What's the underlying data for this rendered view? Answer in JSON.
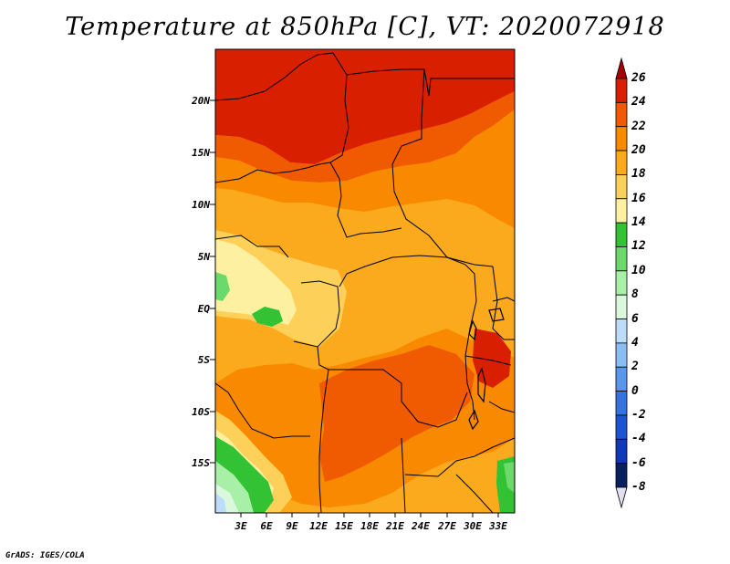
{
  "title": "Temperature at 850hPa [C], VT: 2020072918",
  "credit": "GrADS: IGES/COLA",
  "map": {
    "lat_labels": [
      "20N",
      "15N",
      "10N",
      "5N",
      "EQ",
      "5S",
      "10S",
      "15S"
    ],
    "lon_labels": [
      "3E",
      "6E",
      "9E",
      "12E",
      "15E",
      "18E",
      "21E",
      "24E",
      "27E",
      "30E",
      "33E"
    ]
  },
  "colorbar": {
    "labels": [
      "26",
      "24",
      "22",
      "20",
      "18",
      "16",
      "14",
      "12",
      "10",
      "8",
      "6",
      "4",
      "2",
      "0",
      "-2",
      "-4",
      "-6",
      "-8"
    ],
    "colors": [
      "#a50000",
      "#d82000",
      "#f05a00",
      "#f98a00",
      "#fbaa1e",
      "#fdd05a",
      "#fdf0a0",
      "#33c233",
      "#6cd96c",
      "#a8f0a8",
      "#dcf8dc",
      "#bcdcf7",
      "#8bbcf2",
      "#5a96ec",
      "#3573e0",
      "#1e54d2",
      "#1038b8",
      "#08205e",
      "#e0e0f0"
    ]
  }
}
